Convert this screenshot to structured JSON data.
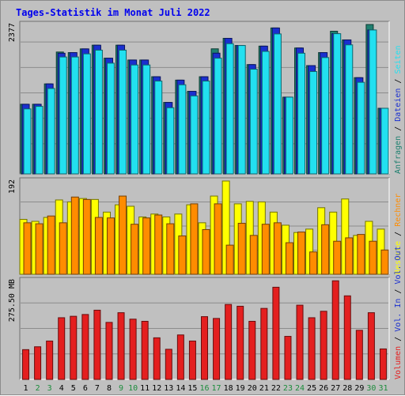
{
  "title": "Tages-Statistik im Monat Juli 2022",
  "colors": {
    "anfragen": "#1f8070",
    "dateien": "#1a2fcf",
    "seiten": "#22e0f0",
    "besuche": "#ffff00",
    "rechner": "#ff8c00",
    "volumen": "#e41f1f",
    "grid": "#8c8c8c",
    "panel_bg": "#c0c0c0",
    "weekend_label": "#1c8c3c",
    "day_label": "#000000"
  },
  "chart_data": {
    "type": "bar",
    "categories": [
      "1",
      "2",
      "3",
      "4",
      "5",
      "6",
      "7",
      "8",
      "9",
      "10",
      "11",
      "12",
      "13",
      "14",
      "15",
      "16",
      "17",
      "18",
      "19",
      "20",
      "21",
      "22",
      "23",
      "24",
      "25",
      "26",
      "27",
      "28",
      "29",
      "30",
      "31"
    ],
    "weekend_days": [
      "2",
      "3",
      "9",
      "10",
      "16",
      "17",
      "23",
      "24",
      "30",
      "31"
    ],
    "panels": [
      {
        "id": "requests",
        "scale_label": "2377",
        "ylim": [
          0,
          2377
        ],
        "right_labels": [
          {
            "text": "Anfragen",
            "color_key": "anfragen"
          },
          {
            "text": " / ",
            "color_key": "day_label"
          },
          {
            "text": "Dateien",
            "color_key": "dateien"
          },
          {
            "text": " / ",
            "color_key": "day_label"
          },
          {
            "text": "Seiten",
            "color_key": "seiten"
          }
        ],
        "series": [
          {
            "name": "Anfragen",
            "color_key": "anfragen",
            "values": [
              1108,
              1108,
              1432,
              1939,
              1930,
              1989,
              2048,
              1841,
              2048,
              1812,
              1812,
              1546,
              1137,
              1492,
              1314,
              1546,
              1990,
              2157,
              2043,
              1739,
              2033,
              2322,
              1221,
              2003,
              1723,
              1930,
              2270,
              2132,
              1531,
              2377,
              1044
            ]
          },
          {
            "name": "Dateien",
            "color_key": "dateien",
            "values": [
              1108,
              1108,
              1432,
              1920,
              1930,
              1989,
              2048,
              1841,
              2048,
              1812,
              1812,
              1546,
              1137,
              1492,
              1314,
              1546,
              1921,
              2157,
              2043,
              1739,
              2033,
              2322,
              1221,
              2003,
              1723,
              1930,
              2231,
              2132,
              1531,
              2290,
              1044
            ]
          },
          {
            "name": "Seiten",
            "color_key": "seiten",
            "values": [
              1034,
              1074,
              1359,
              1860,
              1860,
              1910,
              1969,
              1762,
              1969,
              1733,
              1733,
              1477,
              1053,
              1418,
              1241,
              1477,
              1841,
              2072,
              2043,
              1666,
              1949,
              2227,
              1221,
              1920,
              1629,
              1851,
              2231,
              2053,
              1457,
              2290,
              1044
            ]
          }
        ]
      },
      {
        "id": "visits",
        "scale_label": "192",
        "ylim": [
          0,
          192
        ],
        "right_labels": [
          {
            "text": "Besuche",
            "color_key": "besuche"
          },
          {
            "text": " / ",
            "color_key": "day_label"
          },
          {
            "text": "Rechner",
            "color_key": "rechner"
          }
        ],
        "series": [
          {
            "name": "Besuche",
            "color_key": "besuche",
            "values": [
              113,
              109,
              117,
              153,
              149,
              156,
              154,
              128,
              143,
              140,
              118,
              124,
              118,
              124,
              143,
              106,
              161,
              192,
              145,
              150,
              149,
              128,
              101,
              86,
              93,
              137,
              128,
              155,
              80,
              109,
              93
            ]
          },
          {
            "name": "Rechner",
            "color_key": "rechner",
            "values": [
              106,
              104,
              120,
              106,
              159,
              154,
              117,
              116,
              161,
              103,
              116,
              122,
              104,
              79,
              145,
              92,
              145,
              60,
              105,
              80,
              103,
              106,
              65,
              87,
              46,
              102,
              68,
              75,
              82,
              68,
              50
            ]
          }
        ]
      },
      {
        "id": "volume",
        "scale_label": "275.50 MB",
        "ylim": [
          0,
          275.5
        ],
        "right_labels": [
          {
            "text": "Volumen",
            "color_key": "volumen"
          },
          {
            "text": " / ",
            "color_key": "day_label"
          },
          {
            "text": "Vol. In",
            "color_key": "dateien"
          },
          {
            "text": " / ",
            "color_key": "day_label"
          },
          {
            "text": "Vol. Out",
            "color_key": "dateien"
          }
        ],
        "series": [
          {
            "name": "Volumen",
            "color_key": "volumen",
            "values": [
              83,
              91,
              107,
              172,
              176,
              181,
              193,
              159,
              186,
              168,
              162,
              116,
              84,
              124,
              107,
              175,
              170,
              209,
              204,
              162,
              198,
              257,
              120,
              207,
              172,
              190,
              275,
              233,
              137,
              186,
              85
            ]
          }
        ]
      }
    ]
  }
}
